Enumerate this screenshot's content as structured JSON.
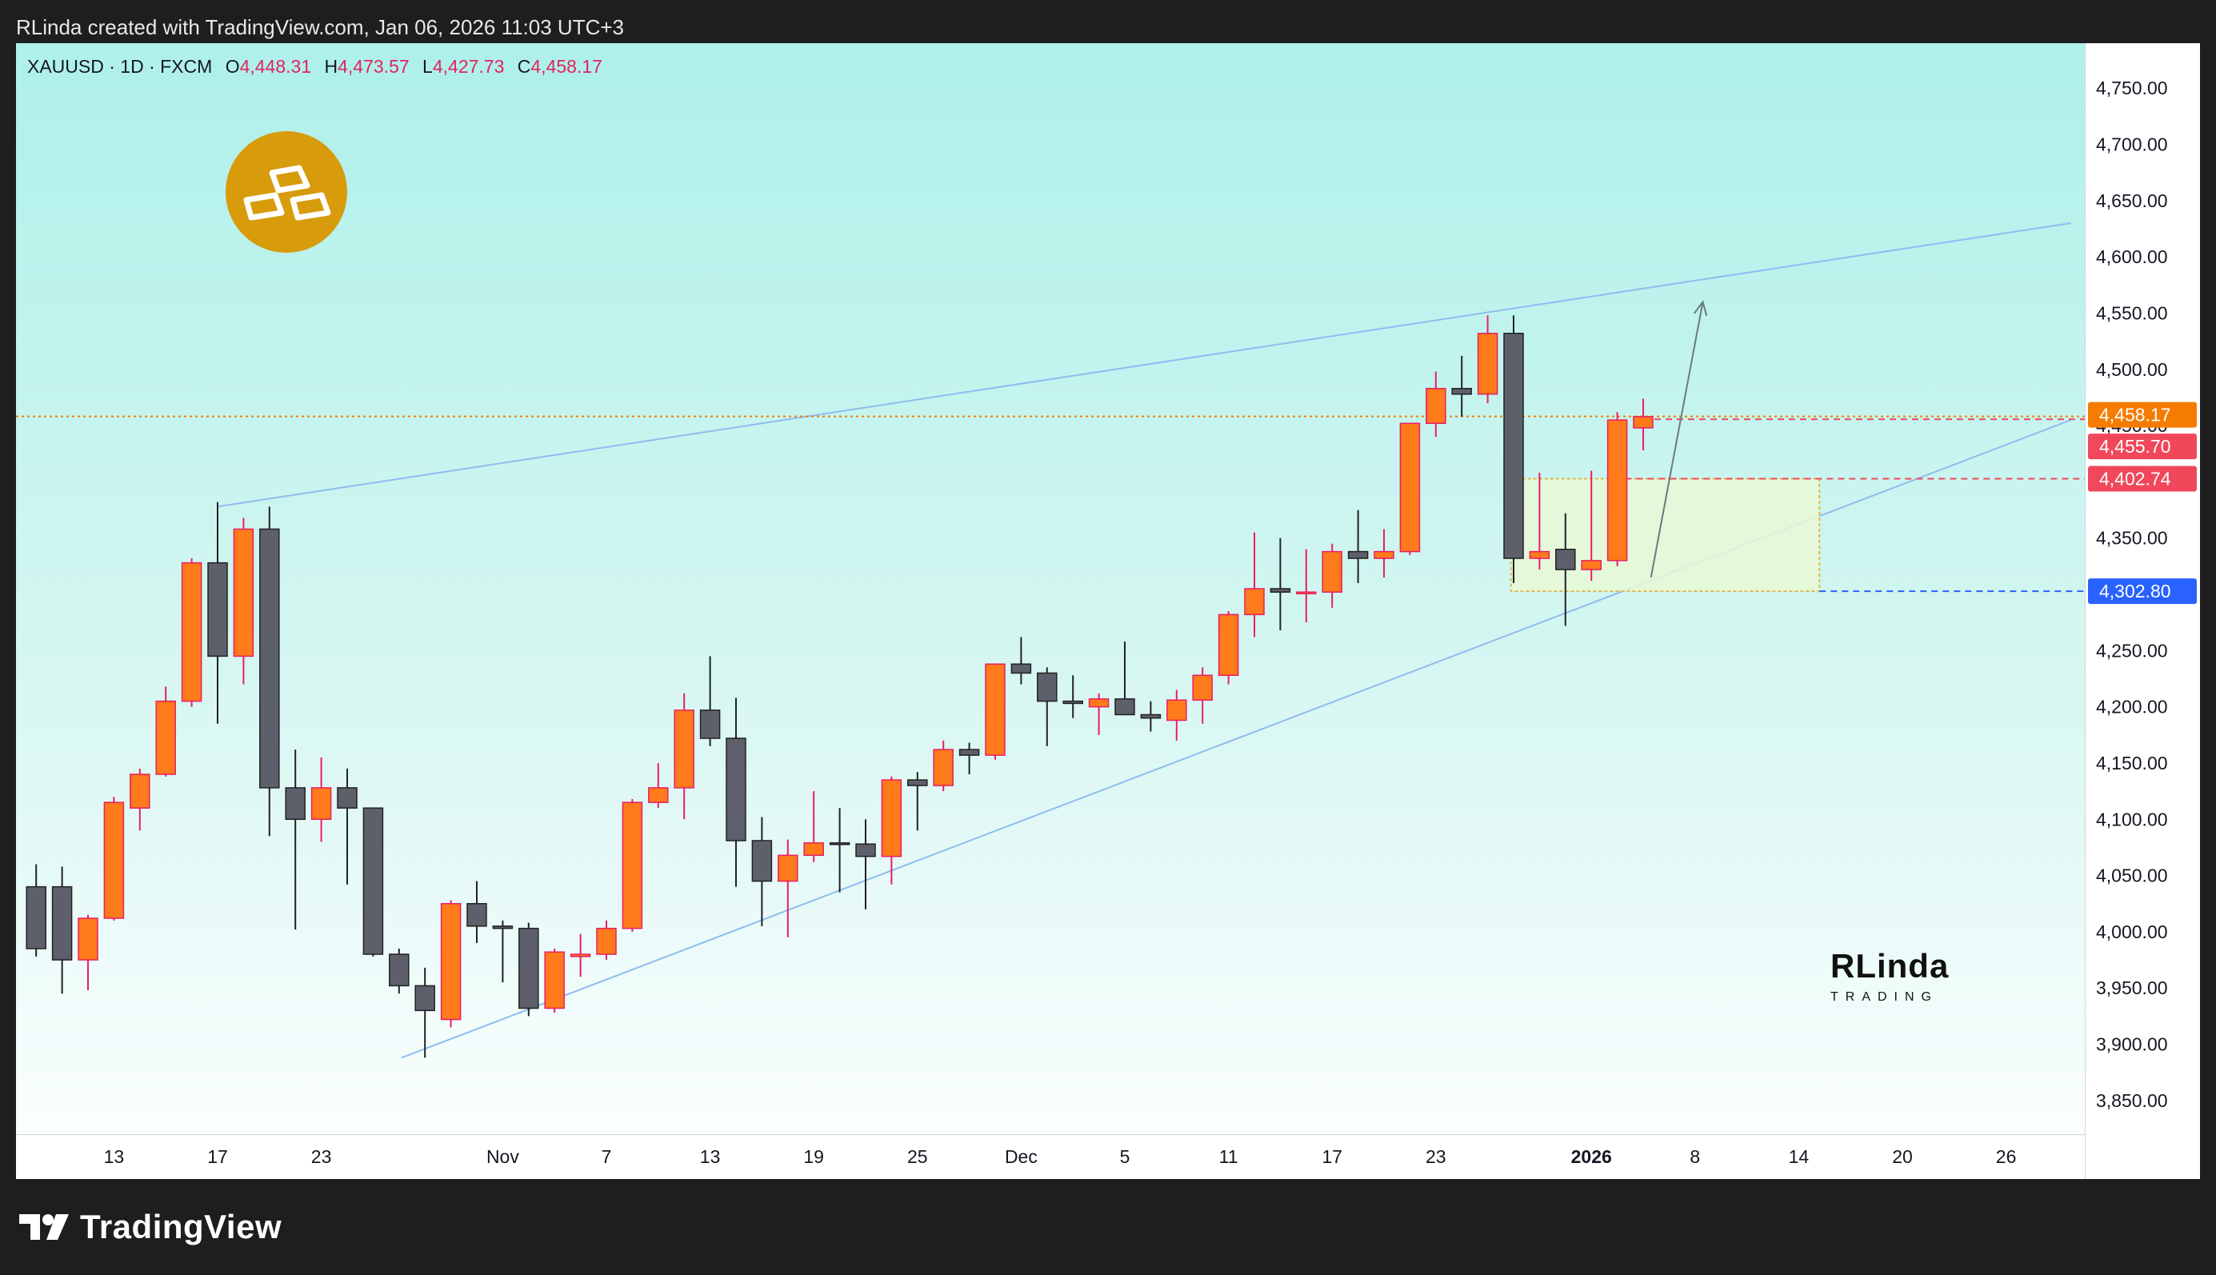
{
  "header": {
    "caption": "RLinda created with TradingView.com, Jan 06, 2026 11:03 UTC+3"
  },
  "legend": {
    "symbol": "XAUUSD · 1D · FXCM",
    "o_label": "O",
    "o_value": "4,448.31",
    "h_label": "H",
    "h_value": "4,473.57",
    "l_label": "L",
    "l_value": "4,427.73",
    "c_label": "C",
    "c_value": "4,458.17"
  },
  "badge": {
    "icon": "gold-bars-icon",
    "color": "#d79b0b"
  },
  "watermark": {
    "main": "RLinda",
    "sub": "TRADING"
  },
  "footer": {
    "brand": "TradingView",
    "icon": "tradingview-logo-icon"
  },
  "colors": {
    "up": "#ff7a1a",
    "down": "#5d606b",
    "wick": "#e91e63",
    "trendline": "#8fbcf0",
    "zone_fill": "#e9f8d6",
    "zone_border": "#e0b84a",
    "current_price": "#f57c00",
    "close_line": "#f0485a",
    "resistance": "#f0485a",
    "support": "#2962ff"
  },
  "chart_data": {
    "type": "candlestick",
    "symbol": "XAUUSD",
    "timeframe": "1D",
    "exchange": "FXCM",
    "ylim": [
      3820,
      4790
    ],
    "y_ticks": [
      3850,
      3900,
      3950,
      4000,
      4050,
      4100,
      4150,
      4200,
      4250,
      4300,
      4350,
      4400,
      4450,
      4500,
      4550,
      4600,
      4650,
      4700,
      4750
    ],
    "y_tick_labels": [
      "3,850.00",
      "3,900.00",
      "3,950.00",
      "4,000.00",
      "4,050.00",
      "4,100.00",
      "4,150.00",
      "4,200.00",
      "4,250.00",
      "4,300.00",
      "4,350.00",
      "4,400.00",
      "4,450.00",
      "4,500.00",
      "4,550.00",
      "4,600.00",
      "4,650.00",
      "4,700.00",
      "4,750.00"
    ],
    "x_labels": [
      {
        "label": "13",
        "bar": 3.5
      },
      {
        "label": "17",
        "bar": 7.5
      },
      {
        "label": "23",
        "bar": 11.5
      },
      {
        "label": "Nov",
        "bar": 18.5
      },
      {
        "label": "7",
        "bar": 22.5
      },
      {
        "label": "13",
        "bar": 26.5
      },
      {
        "label": "19",
        "bar": 30.5
      },
      {
        "label": "25",
        "bar": 34.5
      },
      {
        "label": "Dec",
        "bar": 38.5
      },
      {
        "label": "5",
        "bar": 42.5
      },
      {
        "label": "11",
        "bar": 46.5
      },
      {
        "label": "17",
        "bar": 50.5
      },
      {
        "label": "23",
        "bar": 54.5
      },
      {
        "label": "2026",
        "bar": 60.5,
        "bold": true
      },
      {
        "label": "8",
        "bar": 64.5
      },
      {
        "label": "14",
        "bar": 68.5
      },
      {
        "label": "20",
        "bar": 72.5
      },
      {
        "label": "26",
        "bar": 76.5
      }
    ],
    "candles": [
      [
        4040,
        4060,
        3978,
        3985
      ],
      [
        4040,
        4058,
        3945,
        3975
      ],
      [
        3975,
        4015,
        3948,
        4012
      ],
      [
        4012,
        4120,
        4010,
        4115
      ],
      [
        4110,
        4145,
        4090,
        4140
      ],
      [
        4140,
        4218,
        4138,
        4205
      ],
      [
        4205,
        4332,
        4200,
        4328
      ],
      [
        4328,
        4382,
        4185,
        4245
      ],
      [
        4245,
        4368,
        4220,
        4358
      ],
      [
        4358,
        4378,
        4085,
        4128
      ],
      [
        4128,
        4162,
        4002,
        4100
      ],
      [
        4100,
        4155,
        4080,
        4128
      ],
      [
        4128,
        4145,
        4042,
        4110
      ],
      [
        4110,
        4108,
        3978,
        3980
      ],
      [
        3980,
        3985,
        3945,
        3952
      ],
      [
        3952,
        3968,
        3888,
        3930
      ],
      [
        3922,
        4028,
        3915,
        4025
      ],
      [
        4025,
        4045,
        3990,
        4005
      ],
      [
        4005,
        4010,
        3955,
        4003
      ],
      [
        4003,
        4008,
        3925,
        3932
      ],
      [
        3932,
        3985,
        3928,
        3982
      ],
      [
        3978,
        3998,
        3960,
        3980
      ],
      [
        3980,
        4010,
        3975,
        4003
      ],
      [
        4003,
        4118,
        4000,
        4115
      ],
      [
        4115,
        4150,
        4110,
        4128
      ],
      [
        4128,
        4212,
        4100,
        4197
      ],
      [
        4197,
        4245,
        4165,
        4172
      ],
      [
        4172,
        4208,
        4040,
        4081
      ],
      [
        4081,
        4102,
        4005,
        4045
      ],
      [
        4045,
        4082,
        3995,
        4068
      ],
      [
        4068,
        4125,
        4062,
        4079
      ],
      [
        4079,
        4110,
        4035,
        4078
      ],
      [
        4078,
        4100,
        4020,
        4067
      ],
      [
        4067,
        4138,
        4042,
        4135
      ],
      [
        4135,
        4142,
        4090,
        4130
      ],
      [
        4130,
        4170,
        4125,
        4162
      ],
      [
        4162,
        4168,
        4140,
        4157
      ],
      [
        4157,
        4238,
        4153,
        4238
      ],
      [
        4238,
        4262,
        4220,
        4230
      ],
      [
        4230,
        4235,
        4165,
        4205
      ],
      [
        4205,
        4228,
        4190,
        4203
      ],
      [
        4200,
        4212,
        4175,
        4207
      ],
      [
        4207,
        4258,
        4195,
        4193
      ],
      [
        4193,
        4205,
        4178,
        4190
      ],
      [
        4188,
        4215,
        4170,
        4206
      ],
      [
        4206,
        4235,
        4185,
        4228
      ],
      [
        4228,
        4285,
        4220,
        4282
      ],
      [
        4282,
        4355,
        4262,
        4305
      ],
      [
        4305,
        4350,
        4268,
        4302
      ],
      [
        4302,
        4340,
        4275,
        4302
      ],
      [
        4302,
        4345,
        4288,
        4338
      ],
      [
        4338,
        4375,
        4310,
        4332
      ],
      [
        4332,
        4358,
        4315,
        4338
      ],
      [
        4338,
        4452,
        4335,
        4452
      ],
      [
        4452,
        4498,
        4440,
        4483
      ],
      [
        4483,
        4512,
        4458,
        4478
      ],
      [
        4478,
        4548,
        4470,
        4532
      ],
      [
        4532,
        4548,
        4310,
        4332
      ],
      [
        4332,
        4408,
        4322,
        4338
      ],
      [
        4340,
        4372,
        4272,
        4322
      ],
      [
        4322,
        4410,
        4312,
        4330
      ],
      [
        4330,
        4462,
        4325,
        4455
      ],
      [
        4448,
        4474,
        4428,
        4458
      ]
    ],
    "annotations": {
      "upper_trendline": {
        "from": {
          "bar": 7.5,
          "price": 4378
        },
        "to": {
          "bar": 79.0,
          "price": 4630
        }
      },
      "lower_trendline": {
        "from": {
          "bar": 14.6,
          "price": 3888
        },
        "to": {
          "bar": 79.0,
          "price": 4455
        }
      },
      "zone": {
        "bar_from": 57.4,
        "bar_to": 69.3,
        "top": 4402.74,
        "bottom": 4302.8
      },
      "arrow": {
        "from": {
          "bar": 62.8,
          "price": 4315
        },
        "to": {
          "bar": 64.8,
          "price": 4560
        }
      },
      "price_labels": [
        {
          "value": 4458.17,
          "text": "4,458.17",
          "role": "current_price"
        },
        {
          "value": 4455.7,
          "text": "4,455.70",
          "role": "close_line"
        },
        {
          "value": 4402.74,
          "text": "4,402.74",
          "role": "resistance"
        },
        {
          "value": 4302.8,
          "text": "4,302.80",
          "role": "support"
        }
      ]
    }
  }
}
